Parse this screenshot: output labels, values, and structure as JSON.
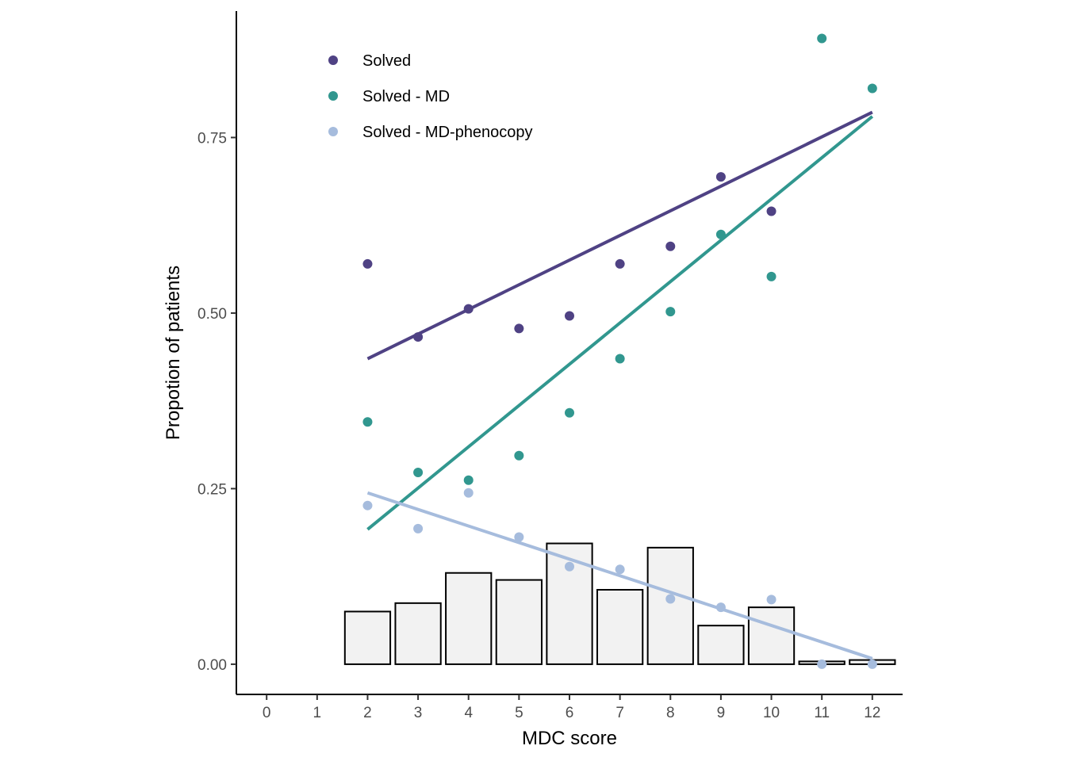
{
  "chart_data": {
    "type": "scatter",
    "xlabel": "MDC score",
    "ylabel": "Propotion of patients",
    "xlim": [
      -0.6,
      12.6
    ],
    "ylim": [
      -0.043,
      0.93
    ],
    "x_ticks": [
      "0",
      "1",
      "2",
      "3",
      "4",
      "5",
      "6",
      "7",
      "8",
      "9",
      "10",
      "11",
      "12"
    ],
    "y_ticks": [
      "0.00",
      "0.25",
      "0.50",
      "0.75"
    ],
    "grid": false,
    "legend_position": "top-left",
    "bars": {
      "x": [
        2,
        3,
        4,
        5,
        6,
        7,
        8,
        9,
        10,
        11,
        12
      ],
      "values": [
        0.075,
        0.087,
        0.13,
        0.12,
        0.172,
        0.106,
        0.166,
        0.055,
        0.081,
        0.004,
        0.006
      ],
      "fill": "#f2f2f2",
      "stroke": "#000000"
    },
    "series": [
      {
        "name": "Solved",
        "color": "#4f4284",
        "x": [
          2,
          3,
          4,
          5,
          6,
          7,
          8,
          9,
          10
        ],
        "y": [
          0.57,
          0.466,
          0.506,
          0.478,
          0.496,
          0.57,
          0.595,
          0.694,
          0.645
        ],
        "fit": [
          [
            2,
            0.435
          ],
          [
            12,
            0.786
          ]
        ]
      },
      {
        "name": "Solved - MD",
        "color": "#31978f",
        "x": [
          2,
          3,
          4,
          5,
          6,
          7,
          8,
          9,
          10,
          11,
          12
        ],
        "y": [
          0.345,
          0.273,
          0.262,
          0.297,
          0.358,
          0.435,
          0.502,
          0.612,
          0.552,
          0.891,
          0.82
        ],
        "fit": [
          [
            2,
            0.192
          ],
          [
            12,
            0.78
          ]
        ]
      },
      {
        "name": "Solved - MD-phenocopy",
        "color": "#a6bcdd",
        "x": [
          2,
          3,
          4,
          5,
          6,
          7,
          8,
          9,
          10,
          11,
          12
        ],
        "y": [
          0.226,
          0.193,
          0.244,
          0.181,
          0.139,
          0.135,
          0.093,
          0.081,
          0.092,
          0.0,
          0.0
        ],
        "fit": [
          [
            2,
            0.244
          ],
          [
            12,
            0.008
          ]
        ]
      }
    ]
  }
}
